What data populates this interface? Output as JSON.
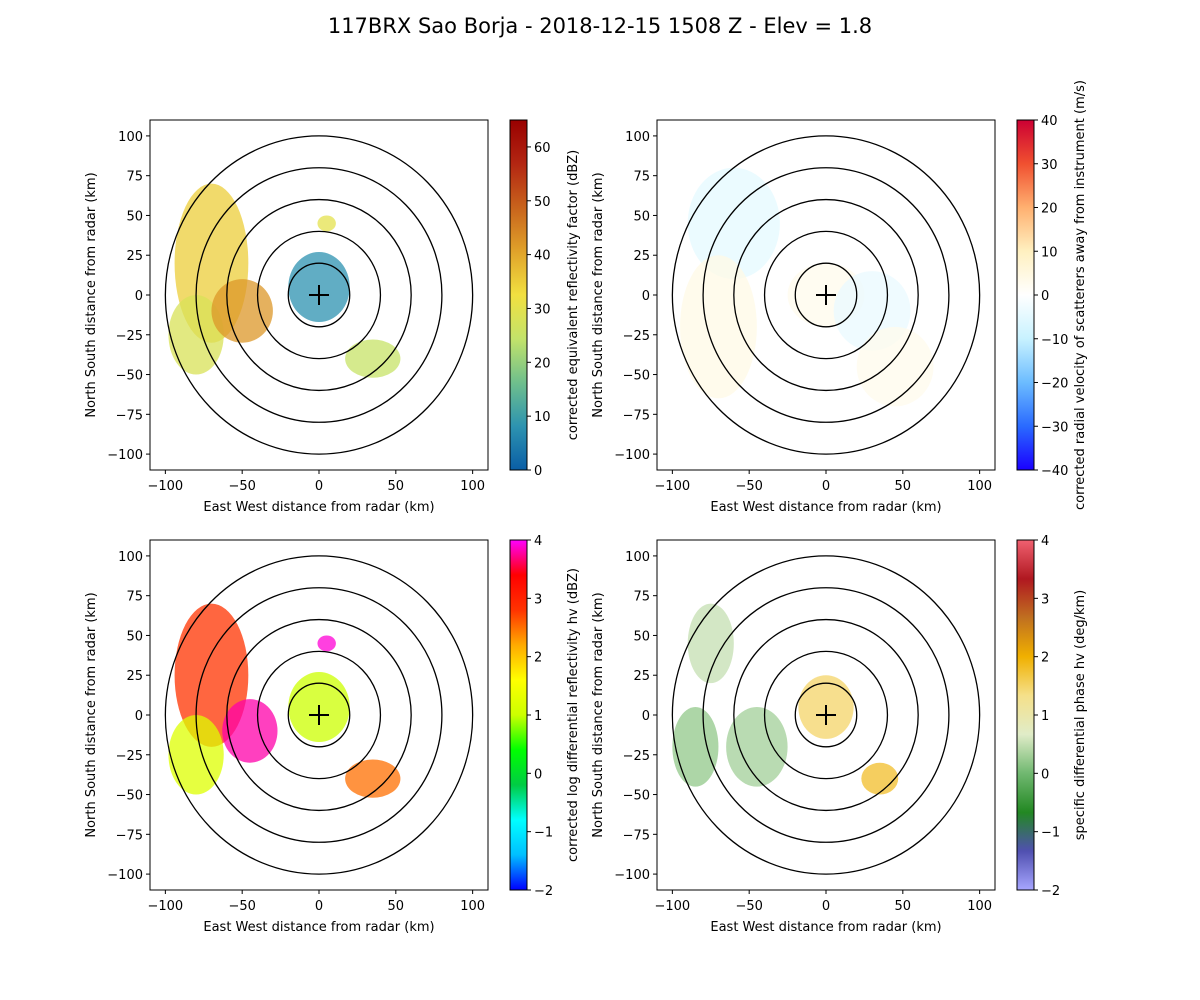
{
  "figure": {
    "title": "117BRX Sao Borja - 2018-12-15 1508 Z -  Elev = 1.8"
  },
  "chart_data": [
    {
      "type": "heatmap",
      "panel": "top-left",
      "field": "reflectivity",
      "xlabel": "East West distance from radar (km)",
      "ylabel": "North South distance from radar (km)",
      "xlim": [
        -110,
        110
      ],
      "ylim": [
        -110,
        110
      ],
      "xticks": [
        -100,
        -50,
        0,
        50,
        100
      ],
      "yticks": [
        -100,
        -75,
        -50,
        -25,
        0,
        25,
        50,
        75,
        100
      ],
      "range_rings_km": [
        20,
        40,
        60,
        80,
        100
      ],
      "radar_location": [
        0,
        0
      ],
      "colorbar": {
        "label": "corrected equivalent reflectivity factor (dBZ)",
        "range": [
          0,
          65
        ],
        "ticks": [
          0,
          10,
          20,
          30,
          40,
          50,
          60
        ],
        "colors": [
          "#0a5ea6",
          "#2d93b0",
          "#6fbf8c",
          "#c3e36a",
          "#f2e040",
          "#e0a22a",
          "#c8631c",
          "#b32612",
          "#990000"
        ]
      },
      "echo_regions": [
        {
          "x": -70,
          "y": 20,
          "rx": 24,
          "ry": 50,
          "value": 35
        },
        {
          "x": -80,
          "y": -25,
          "rx": 18,
          "ry": 25,
          "value": 28
        },
        {
          "x": -50,
          "y": -10,
          "rx": 20,
          "ry": 20,
          "value": 42
        },
        {
          "x": 0,
          "y": 5,
          "rx": 20,
          "ry": 22,
          "value": 8
        },
        {
          "x": 35,
          "y": -40,
          "rx": 18,
          "ry": 12,
          "value": 25
        },
        {
          "x": 5,
          "y": 45,
          "rx": 6,
          "ry": 5,
          "value": 30
        }
      ]
    },
    {
      "type": "heatmap",
      "panel": "top-right",
      "field": "velocity",
      "xlabel": "East West distance from radar (km)",
      "ylabel": "North South distance from radar (km)",
      "xlim": [
        -110,
        110
      ],
      "ylim": [
        -110,
        110
      ],
      "xticks": [
        -100,
        -50,
        0,
        50,
        100
      ],
      "yticks": [
        -100,
        -75,
        -50,
        -25,
        0,
        25,
        50,
        75,
        100
      ],
      "range_rings_km": [
        20,
        40,
        60,
        80,
        100
      ],
      "radar_location": [
        0,
        0
      ],
      "colorbar": {
        "label": "corrected radial velocity of scatterers away from instrument (m/s)",
        "range": [
          -40,
          40
        ],
        "ticks": [
          -40,
          -30,
          -20,
          -10,
          0,
          10,
          20,
          30,
          40
        ],
        "colors": [
          "#1a00ff",
          "#2a6aff",
          "#6cbcff",
          "#c8f2ff",
          "#ffffff",
          "#fff0c0",
          "#ffb070",
          "#f05030",
          "#cc0033"
        ]
      },
      "echo_regions": [
        {
          "x": -60,
          "y": 45,
          "rx": 30,
          "ry": 35,
          "value": -5
        },
        {
          "x": -70,
          "y": -20,
          "rx": 25,
          "ry": 45,
          "value": 4
        },
        {
          "x": 0,
          "y": 0,
          "rx": 25,
          "ry": 20,
          "value": 3
        },
        {
          "x": 30,
          "y": -10,
          "rx": 25,
          "ry": 25,
          "value": -4
        },
        {
          "x": 45,
          "y": -45,
          "rx": 25,
          "ry": 25,
          "value": 3
        }
      ]
    },
    {
      "type": "heatmap",
      "panel": "bottom-left",
      "field": "differential_reflectivity",
      "xlabel": "East West distance from radar (km)",
      "ylabel": "North South distance from radar (km)",
      "xlim": [
        -110,
        110
      ],
      "ylim": [
        -110,
        110
      ],
      "xticks": [
        -100,
        -50,
        0,
        50,
        100
      ],
      "yticks": [
        -100,
        -75,
        -50,
        -25,
        0,
        25,
        50,
        75,
        100
      ],
      "range_rings_km": [
        20,
        40,
        60,
        80,
        100
      ],
      "radar_location": [
        0,
        0
      ],
      "colorbar": {
        "label": "corrected log differential reflectivity hv (dBZ)",
        "range": [
          -2,
          4
        ],
        "ticks": [
          -2,
          -1,
          0,
          1,
          2,
          3,
          4
        ],
        "colors": [
          "#0000ff",
          "#00bfff",
          "#00ffff",
          "#00cc44",
          "#00ff00",
          "#ccff00",
          "#ffff00",
          "#ffaa00",
          "#ff3300",
          "#ff0000",
          "#ff00ff"
        ]
      },
      "echo_regions": [
        {
          "x": -70,
          "y": 25,
          "rx": 24,
          "ry": 45,
          "value": 2.8
        },
        {
          "x": -80,
          "y": -25,
          "rx": 18,
          "ry": 25,
          "value": 1.2
        },
        {
          "x": -45,
          "y": -10,
          "rx": 18,
          "ry": 20,
          "value": 3.8
        },
        {
          "x": 0,
          "y": 5,
          "rx": 20,
          "ry": 22,
          "value": 1.0
        },
        {
          "x": 35,
          "y": -40,
          "rx": 18,
          "ry": 12,
          "value": 2.5
        },
        {
          "x": 5,
          "y": 45,
          "rx": 6,
          "ry": 5,
          "value": 3.9
        }
      ]
    },
    {
      "type": "heatmap",
      "panel": "bottom-right",
      "field": "specific_differential_phase",
      "xlabel": "East West distance from radar (km)",
      "ylabel": "North South distance from radar (km)",
      "xlim": [
        -110,
        110
      ],
      "ylim": [
        -110,
        110
      ],
      "xticks": [
        -100,
        -50,
        0,
        50,
        100
      ],
      "yticks": [
        -100,
        -75,
        -50,
        -25,
        0,
        25,
        50,
        75,
        100
      ],
      "range_rings_km": [
        20,
        40,
        60,
        80,
        100
      ],
      "radar_location": [
        0,
        0
      ],
      "colorbar": {
        "label": "specific differential phase hv (deg/km)",
        "range": [
          -2,
          4
        ],
        "ticks": [
          -2,
          -1,
          0,
          1,
          2,
          3,
          4
        ],
        "colors": [
          "#a7a6ff",
          "#5050b0",
          "#228822",
          "#70b870",
          "#e0ecc8",
          "#f5e08a",
          "#f0b000",
          "#c07020",
          "#b01820",
          "#f06070"
        ]
      },
      "echo_regions": [
        {
          "x": -75,
          "y": 45,
          "rx": 15,
          "ry": 25,
          "value": 0.5
        },
        {
          "x": -85,
          "y": -20,
          "rx": 15,
          "ry": 25,
          "value": 0.2
        },
        {
          "x": -45,
          "y": -20,
          "rx": 20,
          "ry": 25,
          "value": 0.3
        },
        {
          "x": 0,
          "y": 5,
          "rx": 18,
          "ry": 20,
          "value": 1.5
        },
        {
          "x": 35,
          "y": -40,
          "rx": 12,
          "ry": 10,
          "value": 1.8
        }
      ]
    }
  ]
}
